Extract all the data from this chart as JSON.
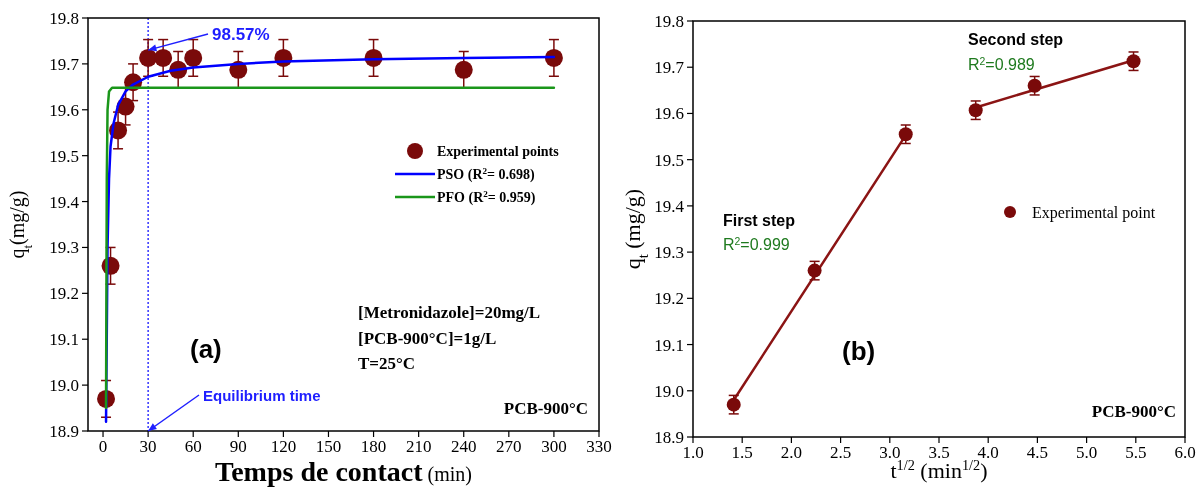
{
  "chart_data": [
    {
      "type": "scatter",
      "xlabel": "Temps de contact (min)",
      "ylabel": "q$_{t}$(mg/g)",
      "xlim": [
        -10,
        330
      ],
      "xticks": [
        0,
        30,
        60,
        90,
        120,
        150,
        180,
        210,
        240,
        270,
        300,
        330
      ],
      "ylim": [
        18.9,
        19.8
      ],
      "yticks": [
        18.9,
        {
          "value": 19.0,
          "label": "19.0"
        },
        19.1,
        19.2,
        19.3,
        19.4,
        19.5,
        19.6,
        19.7,
        19.8
      ],
      "marker": "circle",
      "legend": "right",
      "grid": false,
      "ref_lines": [
        {
          "axis": "x",
          "value": 30,
          "color": "#0000ff",
          "line_style": "dotted"
        }
      ],
      "series": [
        {
          "name": "Experimental points",
          "color": "#7a0a0a",
          "x": [
            2,
            5,
            10,
            15,
            20,
            30,
            40,
            50,
            60,
            90,
            120,
            180,
            240,
            300
          ],
          "values": [
            18.97,
            19.26,
            19.555,
            19.607,
            19.66,
            19.713,
            19.713,
            19.687,
            19.713,
            19.687,
            19.713,
            19.713,
            19.687,
            19.713
          ],
          "errors": [
            0.04,
            0.04,
            0.04,
            0.04,
            0.04,
            0.04,
            0.04,
            0.04,
            0.04,
            0.04,
            0.04,
            0.04,
            0.04,
            0.04
          ]
        },
        {
          "type": "line",
          "marker": "none",
          "name": "PSO (R$^{2}$= 0.698)",
          "color": "#0000ff",
          "x": [
            2,
            3,
            4,
            5,
            7,
            10,
            15,
            20,
            30,
            45,
            60,
            90,
            120,
            180,
            240,
            300
          ],
          "values": [
            18.92,
            19.3,
            19.45,
            19.52,
            19.57,
            19.61,
            19.64,
            19.655,
            19.672,
            19.685,
            19.692,
            19.7,
            19.705,
            19.71,
            19.713,
            19.715
          ]
        },
        {
          "type": "line",
          "marker": "none",
          "name": "PFO (R$^{2}$= 0.959)",
          "color": "#1a961a",
          "x": [
            2,
            2.5,
            3,
            4,
            6,
            10,
            300
          ],
          "values": [
            18.95,
            19.45,
            19.6,
            19.64,
            19.648,
            19.648,
            19.648
          ]
        }
      ],
      "annotations": [
        "(a)",
        "[Metronidazole]=20mg/L",
        "[PCB-900°C]=1g/L",
        "T=25°C",
        "PCB-900°C",
        {
          "text": "98.57%",
          "x": 30,
          "y": 19.73
        },
        {
          "text": "Equilibrium time",
          "x": 30,
          "y": 18.9
        }
      ]
    },
    {
      "type": "scatter",
      "xlabel": "t$^{1/2}$ (min$^{1/2}$)",
      "ylabel": "q$_{t}$ (mg/g)",
      "xlim": [
        1.0,
        6.0
      ],
      "xticks": [
        {
          "value": 1.0,
          "label": "1.0"
        },
        1.5,
        {
          "value": 2.0,
          "label": "2.0"
        },
        2.5,
        {
          "value": 3.0,
          "label": "3.0"
        },
        3.5,
        {
          "value": 4.0,
          "label": "4.0"
        },
        4.5,
        {
          "value": 5.0,
          "label": "5.0"
        },
        5.5,
        {
          "value": 6.0,
          "label": "6.0"
        }
      ],
      "ylim": [
        18.9,
        19.8
      ],
      "yticks": [
        18.9,
        {
          "value": 19.0,
          "label": "19.0"
        },
        19.1,
        19.2,
        19.3,
        19.4,
        19.5,
        19.6,
        19.7,
        19.8
      ],
      "marker": "circle",
      "legend": "right",
      "grid": false,
      "series": [
        {
          "type": "line",
          "marker": "none",
          "color": "#8b1414",
          "x": [
            1.414,
            3.162
          ],
          "values": [
            18.98,
            19.553
          ]
        },
        {
          "type": "line",
          "marker": "none",
          "color": "#8b1414",
          "x": [
            3.873,
            5.477
          ],
          "values": [
            19.613,
            19.715
          ]
        },
        {
          "name": "Experimental point",
          "color": "#7a0a0a",
          "x": [
            1.414,
            2.236,
            3.162,
            3.873,
            4.472,
            5.477
          ],
          "values": [
            18.97,
            19.26,
            19.555,
            19.607,
            19.66,
            19.713
          ],
          "errors": [
            0.02,
            0.02,
            0.02,
            0.02,
            0.02,
            0.02
          ]
        }
      ],
      "annotations": [
        "(b)",
        "First step",
        "R$^{2}$=0.999",
        "Second step",
        "R$^{2}$=0.989",
        "PCB-900°C"
      ]
    }
  ]
}
